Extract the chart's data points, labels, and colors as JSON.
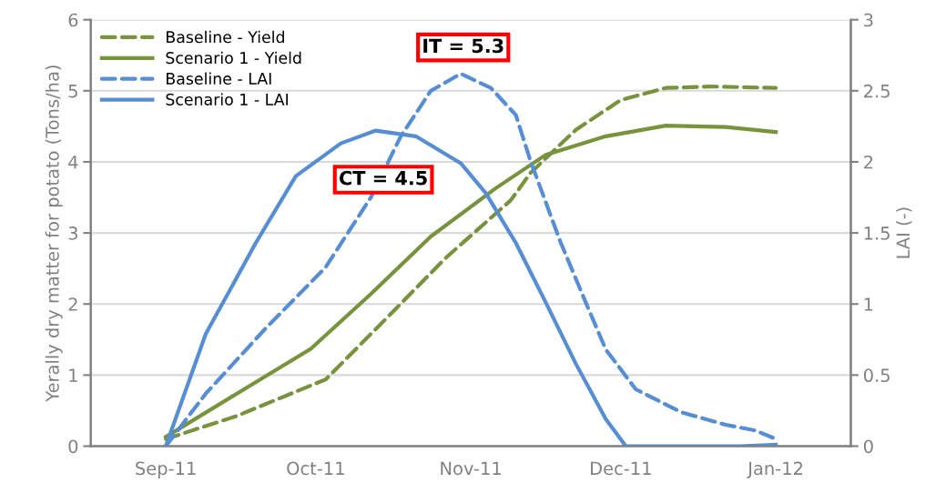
{
  "chart_data": {
    "type": "line",
    "xlabel": null,
    "ylabel": "Yerally dry matter for potato (Tons/ha)",
    "y2label": "LAI (-)",
    "xlim": [
      "2011-08-17",
      "2012-01-16"
    ],
    "xticks": [
      {
        "value": "2011-09-01",
        "label": "Sep-11"
      },
      {
        "value": "2011-10-01",
        "label": "Oct-11"
      },
      {
        "value": "2011-11-01",
        "label": "Nov-11"
      },
      {
        "value": "2011-12-01",
        "label": "Dec-11"
      },
      {
        "value": "2012-01-01",
        "label": "Jan-12"
      }
    ],
    "ylim": [
      0,
      6
    ],
    "yticks": [
      0,
      1,
      2,
      3,
      4,
      5,
      6
    ],
    "y2lim": [
      0,
      3
    ],
    "y2ticks": [
      0,
      0.5,
      1,
      1.5,
      2,
      2.5,
      3
    ],
    "grid": "y",
    "legend": "top left",
    "annotations": [
      "IT = 5.3",
      "CT = 4.5"
    ],
    "series": [
      {
        "name": "Baseline - Yield",
        "color": "#77933c",
        "line_style": "dashed",
        "x": [
          "2011-09-01",
          "2011-09-15",
          "2011-10-03",
          "2011-10-15",
          "2011-10-27",
          "2011-11-09",
          "2011-11-13",
          "2011-11-22",
          "2011-12-01",
          "2011-12-10",
          "2011-12-19",
          "2012-01-01"
        ],
        "values": [
          0.1,
          0.42,
          0.94,
          1.79,
          2.65,
          3.46,
          3.85,
          4.45,
          4.87,
          5.04,
          5.06,
          5.04
        ]
      },
      {
        "name": "Scenario 1 - Yield",
        "color": "#77933c",
        "line_style": "solid",
        "x": [
          "2011-09-01",
          "2011-09-15",
          "2011-09-30",
          "2011-10-12",
          "2011-10-24",
          "2011-11-06",
          "2011-11-16",
          "2011-11-28",
          "2011-12-10",
          "2011-12-22",
          "2012-01-01"
        ],
        "values": [
          0.13,
          0.73,
          1.37,
          2.14,
          2.95,
          3.63,
          4.1,
          4.36,
          4.51,
          4.49,
          4.42
        ]
      },
      {
        "name": "Baseline - LAI",
        "color": "#558ed5",
        "line_style": "dashed",
        "axis": "y2",
        "x": [
          "2011-09-01",
          "2011-09-09",
          "2011-09-21",
          "2011-10-03",
          "2011-10-12",
          "2011-10-18",
          "2011-10-24",
          "2011-10-30",
          "2011-11-05",
          "2011-11-10",
          "2011-11-13",
          "2011-11-19",
          "2011-11-24",
          "2011-11-28",
          "2011-12-04",
          "2011-12-13",
          "2011-12-22",
          "2011-12-28",
          "2012-01-01"
        ],
        "values": [
          0,
          0.37,
          0.83,
          1.26,
          1.75,
          2.18,
          2.5,
          2.62,
          2.52,
          2.33,
          2.0,
          1.43,
          1.01,
          0.68,
          0.4,
          0.24,
          0.15,
          0.11,
          0.05
        ]
      },
      {
        "name": "Scenario 1 - LAI",
        "color": "#558ed5",
        "line_style": "solid",
        "axis": "y2",
        "x": [
          "2011-09-01",
          "2011-09-09",
          "2011-09-19",
          "2011-09-27",
          "2011-10-06",
          "2011-10-13",
          "2011-10-21",
          "2011-10-30",
          "2011-11-04",
          "2011-11-10",
          "2011-11-16",
          "2011-11-22",
          "2011-11-28",
          "2011-12-02",
          "2011-12-25",
          "2012-01-01"
        ],
        "values": [
          0,
          0.79,
          1.43,
          1.9,
          2.13,
          2.22,
          2.18,
          1.99,
          1.78,
          1.43,
          1.01,
          0.58,
          0.19,
          0,
          0,
          0.01
        ]
      }
    ]
  }
}
